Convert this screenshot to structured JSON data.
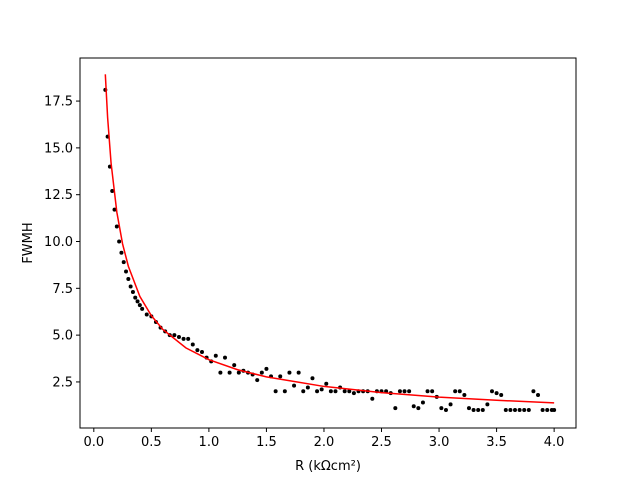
{
  "chart_data": {
    "type": "scatter",
    "x_label": "R (kΩcm²)",
    "y_label": "FWMH",
    "xlim": [
      -0.12,
      4.19
    ],
    "ylim": [
      0.04,
      19.8
    ],
    "xticks": [
      {
        "value": 0,
        "label": "0.0"
      },
      0.5,
      {
        "value": 1,
        "label": "1.0"
      },
      1.5,
      {
        "value": 2,
        "label": "2.0"
      },
      2.5,
      {
        "value": 3,
        "label": "3.0"
      },
      3.5,
      {
        "value": 4,
        "label": "4.0"
      }
    ],
    "yticks": [
      2.5,
      {
        "value": 5,
        "label": "5.0"
      },
      7.5,
      {
        "value": 10,
        "label": "10.0"
      },
      12.5,
      {
        "value": 15,
        "label": "15.0"
      },
      17.5
    ],
    "series": [
      {
        "type": "scatter",
        "color": "#000000",
        "x": [
          0.1,
          0.12,
          0.14,
          0.16,
          0.18,
          0.2,
          0.22,
          0.24,
          0.26,
          0.28,
          0.3,
          0.32,
          0.34,
          0.36,
          0.38,
          0.4,
          0.42,
          0.46,
          0.5,
          0.54,
          0.58,
          0.62,
          0.66,
          0.7,
          0.74,
          0.78,
          0.82,
          0.86,
          0.9,
          0.94,
          0.98,
          1.02,
          1.06,
          1.1,
          1.14,
          1.18,
          1.22,
          1.26,
          1.3,
          1.34,
          1.38,
          1.42,
          1.46,
          1.5,
          1.54,
          1.58,
          1.62,
          1.66,
          1.7,
          1.74,
          1.78,
          1.82,
          1.86,
          1.9,
          1.94,
          1.98,
          2.02,
          2.06,
          2.1,
          2.14,
          2.18,
          2.22,
          2.26,
          2.3,
          2.34,
          2.38,
          2.42,
          2.46,
          2.5,
          2.54,
          2.58,
          2.62,
          2.66,
          2.7,
          2.74,
          2.78,
          2.82,
          2.86,
          2.9,
          2.94,
          2.98,
          3.02,
          3.06,
          3.1,
          3.14,
          3.18,
          3.22,
          3.26,
          3.3,
          3.34,
          3.38,
          3.42,
          3.46,
          3.5,
          3.54,
          3.58,
          3.62,
          3.66,
          3.7,
          3.74,
          3.78,
          3.82,
          3.86,
          3.9,
          3.94,
          3.98,
          4.0
        ],
        "values": [
          18.1,
          15.6,
          14.0,
          12.7,
          11.7,
          10.8,
          10.0,
          9.4,
          8.9,
          8.4,
          8.0,
          7.6,
          7.3,
          7.0,
          6.8,
          6.6,
          6.4,
          6.1,
          6.0,
          5.7,
          5.4,
          5.2,
          5.0,
          5.0,
          4.9,
          4.8,
          4.8,
          4.5,
          4.2,
          4.1,
          3.8,
          3.6,
          3.9,
          3.0,
          3.8,
          3.0,
          3.4,
          3.0,
          3.1,
          3.0,
          2.9,
          2.6,
          3.0,
          3.2,
          2.8,
          2.0,
          2.8,
          2.0,
          3.0,
          2.3,
          3.0,
          2.0,
          2.2,
          2.7,
          2.0,
          2.1,
          2.4,
          2.0,
          2.0,
          2.2,
          2.0,
          2.0,
          1.9,
          2.0,
          2.0,
          2.0,
          1.6,
          2.0,
          2.0,
          2.0,
          1.9,
          1.1,
          2.0,
          2.0,
          2.0,
          1.2,
          1.1,
          1.4,
          2.0,
          2.0,
          1.7,
          1.1,
          1.0,
          1.3,
          2.0,
          2.0,
          1.8,
          1.1,
          1.0,
          1.0,
          1.0,
          1.3,
          2.0,
          1.9,
          1.8,
          1.0,
          1.0,
          1.0,
          1.0,
          1.0,
          1.0,
          2.0,
          1.8,
          1.0,
          1.0,
          1.0,
          1.0
        ]
      },
      {
        "type": "line",
        "color": "#ff0000",
        "x": [
          0.1,
          0.12,
          0.15,
          0.2,
          0.25,
          0.3,
          0.4,
          0.5,
          0.6,
          0.8,
          1.0,
          1.25,
          1.5,
          2.0,
          2.5,
          3.0,
          3.5,
          4.0
        ],
        "values": [
          18.93,
          16.62,
          14.19,
          11.57,
          9.87,
          8.68,
          7.07,
          6.04,
          5.3,
          4.32,
          3.69,
          3.15,
          2.77,
          2.26,
          1.93,
          1.69,
          1.52,
          1.38
        ]
      }
    ]
  }
}
